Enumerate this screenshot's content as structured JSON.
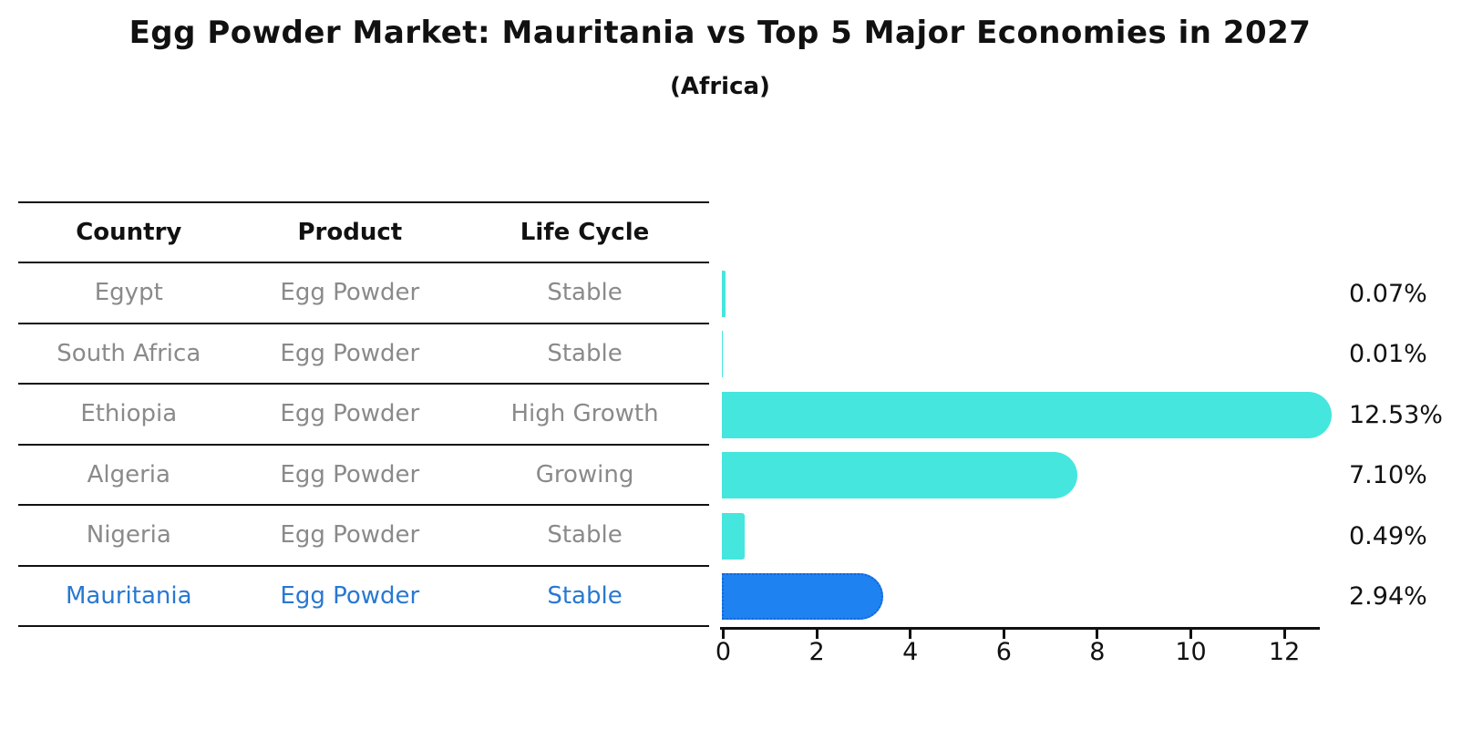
{
  "title": "Egg Powder Market: Mauritania vs Top 5 Major Economies in 2027",
  "subtitle": "(Africa)",
  "table": {
    "headers": [
      "Country",
      "Product",
      "Life Cycle"
    ],
    "rows": [
      {
        "country": "Egypt",
        "product": "Egg Powder",
        "life_cycle": "Stable",
        "highlight": false
      },
      {
        "country": "South Africa",
        "product": "Egg Powder",
        "life_cycle": "Stable",
        "highlight": false
      },
      {
        "country": "Ethiopia",
        "product": "Egg Powder",
        "life_cycle": "High Growth",
        "highlight": false
      },
      {
        "country": "Algeria",
        "product": "Egg Powder",
        "life_cycle": "Growing",
        "highlight": false
      },
      {
        "country": "Nigeria",
        "product": "Egg Powder",
        "life_cycle": "Stable",
        "highlight": false
      },
      {
        "country": "Mauritania",
        "product": "Egg Powder",
        "life_cycle": "Stable",
        "highlight": true
      }
    ]
  },
  "chart_data": {
    "type": "bar",
    "orientation": "horizontal",
    "title": "Egg Powder Market: Mauritania vs Top 5 Major Economies in 2027",
    "subtitle": "(Africa)",
    "categories": [
      "Egypt",
      "South Africa",
      "Ethiopia",
      "Algeria",
      "Nigeria",
      "Mauritania"
    ],
    "values": [
      0.07,
      0.01,
      12.53,
      7.1,
      0.49,
      2.94
    ],
    "value_labels": [
      "0.07%",
      "0.01%",
      "12.53%",
      "7.10%",
      "0.49%",
      "2.94%"
    ],
    "x_ticks": [
      0,
      2,
      4,
      6,
      8,
      10,
      12
    ],
    "xlim": [
      0,
      12.75
    ],
    "grid": false,
    "legend": "none",
    "bar_color": "#45E6DD",
    "highlight_index": 5,
    "highlight_color": "#1E82F0",
    "highlight_border_color": "#1565D8",
    "highlight_border_style": "dotted"
  },
  "colors": {
    "header_text": "#111111",
    "row_text": "#8a8a8a",
    "highlight_text": "#2878d2",
    "axis": "#111111",
    "label_text": "#111111"
  }
}
